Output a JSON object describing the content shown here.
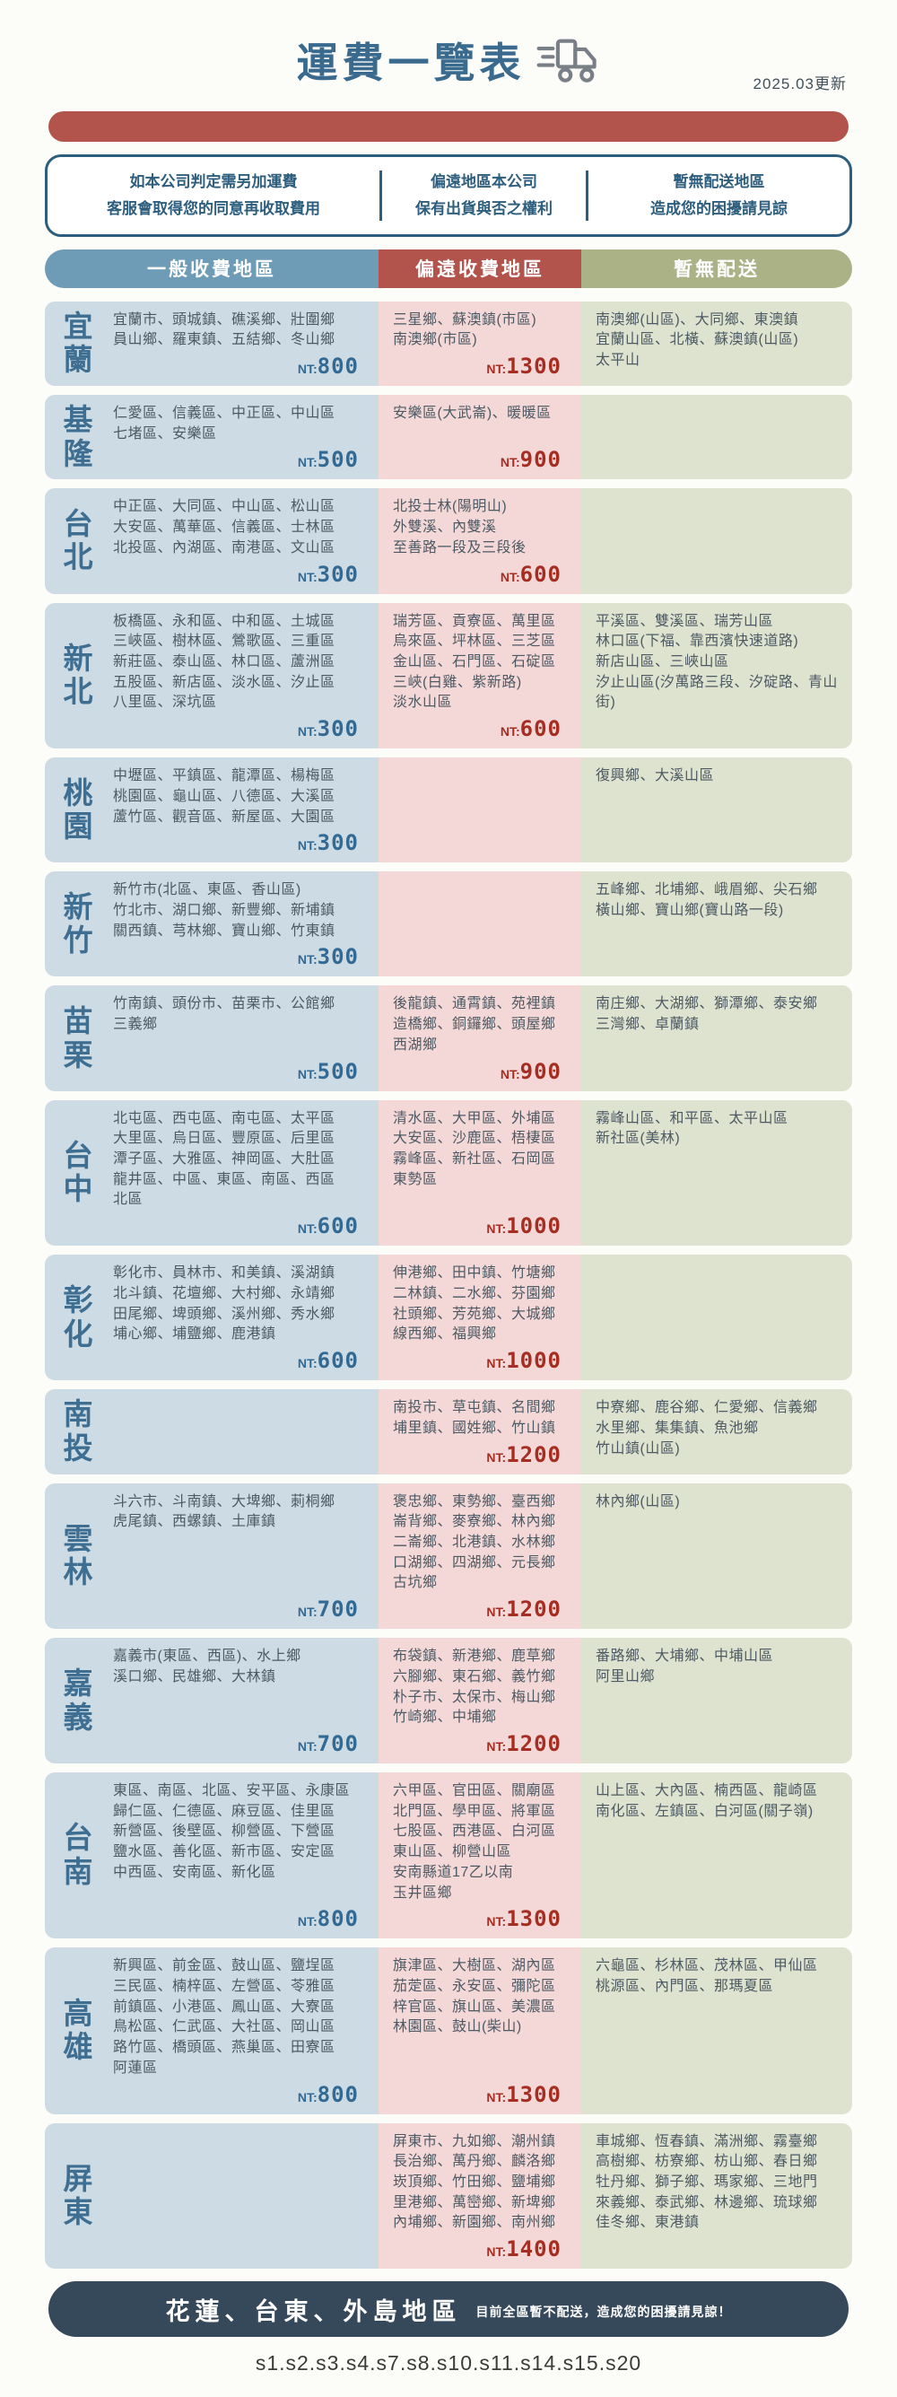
{
  "header": {
    "title": "運費一覽表",
    "updated": "2025.03更新",
    "notes": [
      {
        "line1": "如本公司判定需另加運費",
        "line2": "客服會取得您的同意再收取費用"
      },
      {
        "line1": "偏遠地區本公司",
        "line2": "保有出貨與否之權利"
      },
      {
        "line1": "暫無配送地區",
        "line2": "造成您的困擾請見諒"
      }
    ]
  },
  "columns": {
    "general": {
      "label": "一般收費地區",
      "color": "#6e9cb6"
    },
    "remote": {
      "label": "偏遠收費地區",
      "color": "#b2544b"
    },
    "none": {
      "label": "暫無配送",
      "color": "#aab286"
    }
  },
  "price_prefix": "NT:",
  "colors": {
    "general_bg": "#ccdbe4",
    "remote_bg": "#f3d8d7",
    "none_bg": "#dee3d0",
    "general_price": "#336a94",
    "remote_price": "#a62d21",
    "accent_red_bar": "#b2544b",
    "note_border": "#2d5e7e",
    "footer_bg": "#36495b"
  },
  "rows": [
    {
      "region": "宜蘭",
      "general": {
        "lines": [
          "宜蘭市、頭城鎮、礁溪鄉、壯圍鄉",
          "員山鄉、羅東鎮、五結鄉、冬山鄉"
        ],
        "price": "800"
      },
      "remote": {
        "lines": [
          "三星鄉、蘇澳鎮(市區)",
          "南澳鄉(市區)"
        ],
        "price": "1300"
      },
      "none": {
        "lines": [
          "南澳鄉(山區)、大同鄉、東澳鎮",
          "宜蘭山區、北橫、蘇澳鎮(山區)",
          "太平山"
        ]
      }
    },
    {
      "region": "基隆",
      "general": {
        "lines": [
          "仁愛區、信義區、中正區、中山區",
          "七堵區、安樂區"
        ],
        "price": "500"
      },
      "remote": {
        "lines": [
          "安樂區(大武崙)、暖暖區"
        ],
        "price": "900"
      },
      "none": {
        "lines": []
      }
    },
    {
      "region": "台北",
      "general": {
        "lines": [
          "中正區、大同區、中山區、松山區",
          "大安區、萬華區、信義區、士林區",
          "北投區、內湖區、南港區、文山區"
        ],
        "price": "300"
      },
      "remote": {
        "lines": [
          "北投士林(陽明山)",
          "外雙溪、內雙溪",
          "至善路一段及三段後"
        ],
        "price": "600"
      },
      "none": {
        "lines": []
      }
    },
    {
      "region": "新北",
      "general": {
        "lines": [
          "板橋區、永和區、中和區、土城區",
          "三峽區、樹林區、鶯歌區、三重區",
          "新莊區、泰山區、林口區、蘆洲區",
          "五股區、新店區、淡水區、汐止區",
          "八里區、深坑區"
        ],
        "price": "300"
      },
      "remote": {
        "lines": [
          "瑞芳區、貢寮區、萬里區",
          "烏來區、坪林區、三芝區",
          "金山區、石門區、石碇區",
          "三峽(白雞、紫新路)",
          "淡水山區"
        ],
        "price": "600"
      },
      "none": {
        "lines": [
          "平溪區、雙溪區、瑞芳山區",
          "林口區(下福、靠西濱快速道路)",
          "新店山區、三峽山區",
          "汐止山區(汐萬路三段、汐碇路、青山街)"
        ]
      }
    },
    {
      "region": "桃園",
      "general": {
        "lines": [
          "中壢區、平鎮區、龍潭區、楊梅區",
          "桃園區、龜山區、八德區、大溪區",
          "蘆竹區、觀音區、新屋區、大園區"
        ],
        "price": "300"
      },
      "remote": {
        "lines": []
      },
      "none": {
        "lines": [
          "復興鄉、大溪山區"
        ]
      }
    },
    {
      "region": "新竹",
      "general": {
        "lines": [
          "新竹市(北區、東區、香山區)",
          "竹北市、湖口鄉、新豐鄉、新埔鎮",
          "關西鎮、芎林鄉、寶山鄉、竹東鎮"
        ],
        "price": "300"
      },
      "remote": {
        "lines": []
      },
      "none": {
        "lines": [
          "五峰鄉、北埔鄉、峨眉鄉、尖石鄉",
          "橫山鄉、寶山鄉(寶山路一段)"
        ]
      }
    },
    {
      "region": "苗栗",
      "general": {
        "lines": [
          "竹南鎮、頭份市、苗栗市、公館鄉",
          "三義鄉"
        ],
        "price": "500"
      },
      "remote": {
        "lines": [
          "後龍鎮、通霄鎮、苑裡鎮",
          "造橋鄉、銅鑼鄉、頭屋鄉",
          "西湖鄉"
        ],
        "price": "900"
      },
      "none": {
        "lines": [
          "南庄鄉、大湖鄉、獅潭鄉、泰安鄉",
          "三灣鄉、卓蘭鎮"
        ]
      }
    },
    {
      "region": "台中",
      "general": {
        "lines": [
          "北屯區、西屯區、南屯區、太平區",
          "大里區、烏日區、豐原區、后里區",
          "潭子區、大雅區、神岡區、大肚區",
          "龍井區、中區、東區、南區、西區",
          "北區"
        ],
        "price": "600"
      },
      "remote": {
        "lines": [
          "清水區、大甲區、外埔區",
          "大安區、沙鹿區、梧棲區",
          "霧峰區、新社區、石岡區",
          "東勢區"
        ],
        "price": "1000"
      },
      "none": {
        "lines": [
          "霧峰山區、和平區、太平山區",
          "新社區(美林)"
        ]
      }
    },
    {
      "region": "彰化",
      "general": {
        "lines": [
          "彰化市、員林市、和美鎮、溪湖鎮",
          "北斗鎮、花壇鄉、大村鄉、永靖鄉",
          "田尾鄉、埤頭鄉、溪州鄉、秀水鄉",
          "埔心鄉、埔鹽鄉、鹿港鎮"
        ],
        "price": "600"
      },
      "remote": {
        "lines": [
          "伸港鄉、田中鎮、竹塘鄉",
          "二林鎮、二水鄉、芬園鄉",
          "社頭鄉、芳苑鄉、大城鄉",
          "線西鄉、福興鄉"
        ],
        "price": "1000"
      },
      "none": {
        "lines": []
      }
    },
    {
      "region": "南投",
      "general": {
        "lines": []
      },
      "remote": {
        "lines": [
          "南投市、草屯鎮、名間鄉",
          "埔里鎮、國姓鄉、竹山鎮"
        ],
        "price": "1200"
      },
      "none": {
        "lines": [
          "中寮鄉、鹿谷鄉、仁愛鄉、信義鄉",
          "水里鄉、集集鎮、魚池鄉",
          "竹山鎮(山區)"
        ]
      }
    },
    {
      "region": "雲林",
      "general": {
        "lines": [
          "斗六市、斗南鎮、大埤鄉、莿桐鄉",
          "虎尾鎮、西螺鎮、土庫鎮"
        ],
        "price": "700"
      },
      "remote": {
        "lines": [
          "褒忠鄉、東勢鄉、臺西鄉",
          "崙背鄉、麥寮鄉、林內鄉",
          "二崙鄉、北港鎮、水林鄉",
          "口湖鄉、四湖鄉、元長鄉",
          "古坑鄉"
        ],
        "price": "1200"
      },
      "none": {
        "lines": [
          "林內鄉(山區)"
        ]
      }
    },
    {
      "region": "嘉義",
      "general": {
        "lines": [
          "嘉義市(東區、西區)、水上鄉",
          "溪口鄉、民雄鄉、大林鎮"
        ],
        "price": "700"
      },
      "remote": {
        "lines": [
          "布袋鎮、新港鄉、鹿草鄉",
          "六腳鄉、東石鄉、義竹鄉",
          "朴子市、太保市、梅山鄉",
          "竹崎鄉、中埔鄉"
        ],
        "price": "1200"
      },
      "none": {
        "lines": [
          "番路鄉、大埔鄉、中埔山區",
          "阿里山鄉"
        ]
      }
    },
    {
      "region": "台南",
      "general": {
        "lines": [
          "東區、南區、北區、安平區、永康區",
          "歸仁區、仁德區、麻豆區、佳里區",
          "新營區、後壁區、柳營區、下營區",
          "鹽水區、善化區、新市區、安定區",
          "中西區、安南區、新化區"
        ],
        "price": "800"
      },
      "remote": {
        "lines": [
          "六甲區、官田區、關廟區",
          "北門區、學甲區、將軍區",
          "七股區、西港區、白河區",
          "東山區、柳營山區",
          "安南縣道17乙以南",
          "玉井區鄉"
        ],
        "price": "1300"
      },
      "none": {
        "lines": [
          "山上區、大內區、楠西區、龍崎區",
          "南化區、左鎮區、白河區(關子嶺)"
        ]
      }
    },
    {
      "region": "高雄",
      "general": {
        "lines": [
          "新興區、前金區、鼓山區、鹽埕區",
          "三民區、楠梓區、左營區、苓雅區",
          "前鎮區、小港區、鳳山區、大寮區",
          "鳥松區、仁武區、大社區、岡山區",
          "路竹區、橋頭區、燕巢區、田寮區",
          "阿蓮區"
        ],
        "price": "800"
      },
      "remote": {
        "lines": [
          "旗津區、大樹區、湖內區",
          "茄萣區、永安區、彌陀區",
          "梓官區、旗山區、美濃區",
          "林園區、鼓山(柴山)"
        ],
        "price": "1300"
      },
      "none": {
        "lines": [
          "六龜區、杉林區、茂林區、甲仙區",
          "桃源區、內門區、那瑪夏區"
        ]
      }
    },
    {
      "region": "屏東",
      "general": {
        "lines": []
      },
      "remote": {
        "lines": [
          "屏東市、九如鄉、潮州鎮",
          "長治鄉、萬丹鄉、麟洛鄉",
          "崁頂鄉、竹田鄉、鹽埔鄉",
          "里港鄉、萬巒鄉、新埤鄉",
          "內埔鄉、新園鄉、南州鄉"
        ],
        "price": "1400"
      },
      "none": {
        "lines": [
          "車城鄉、恆春鎮、滿洲鄉、霧臺鄉",
          "高樹鄉、枋寮鄉、枋山鄉、春日鄉",
          "牡丹鄉、獅子鄉、瑪家鄉、三地門",
          "來義鄉、泰武鄉、林邊鄉、琉球鄉",
          "佳冬鄉、東港鎮"
        ]
      }
    }
  ],
  "footer": {
    "title": "花蓮、台東、外島地區",
    "note": "目前全區暫不配送，造成您的困擾請見諒！"
  },
  "footnote": "s1.s2.s3.s4.s7.s8.s10.s11.s14.s15.s20"
}
